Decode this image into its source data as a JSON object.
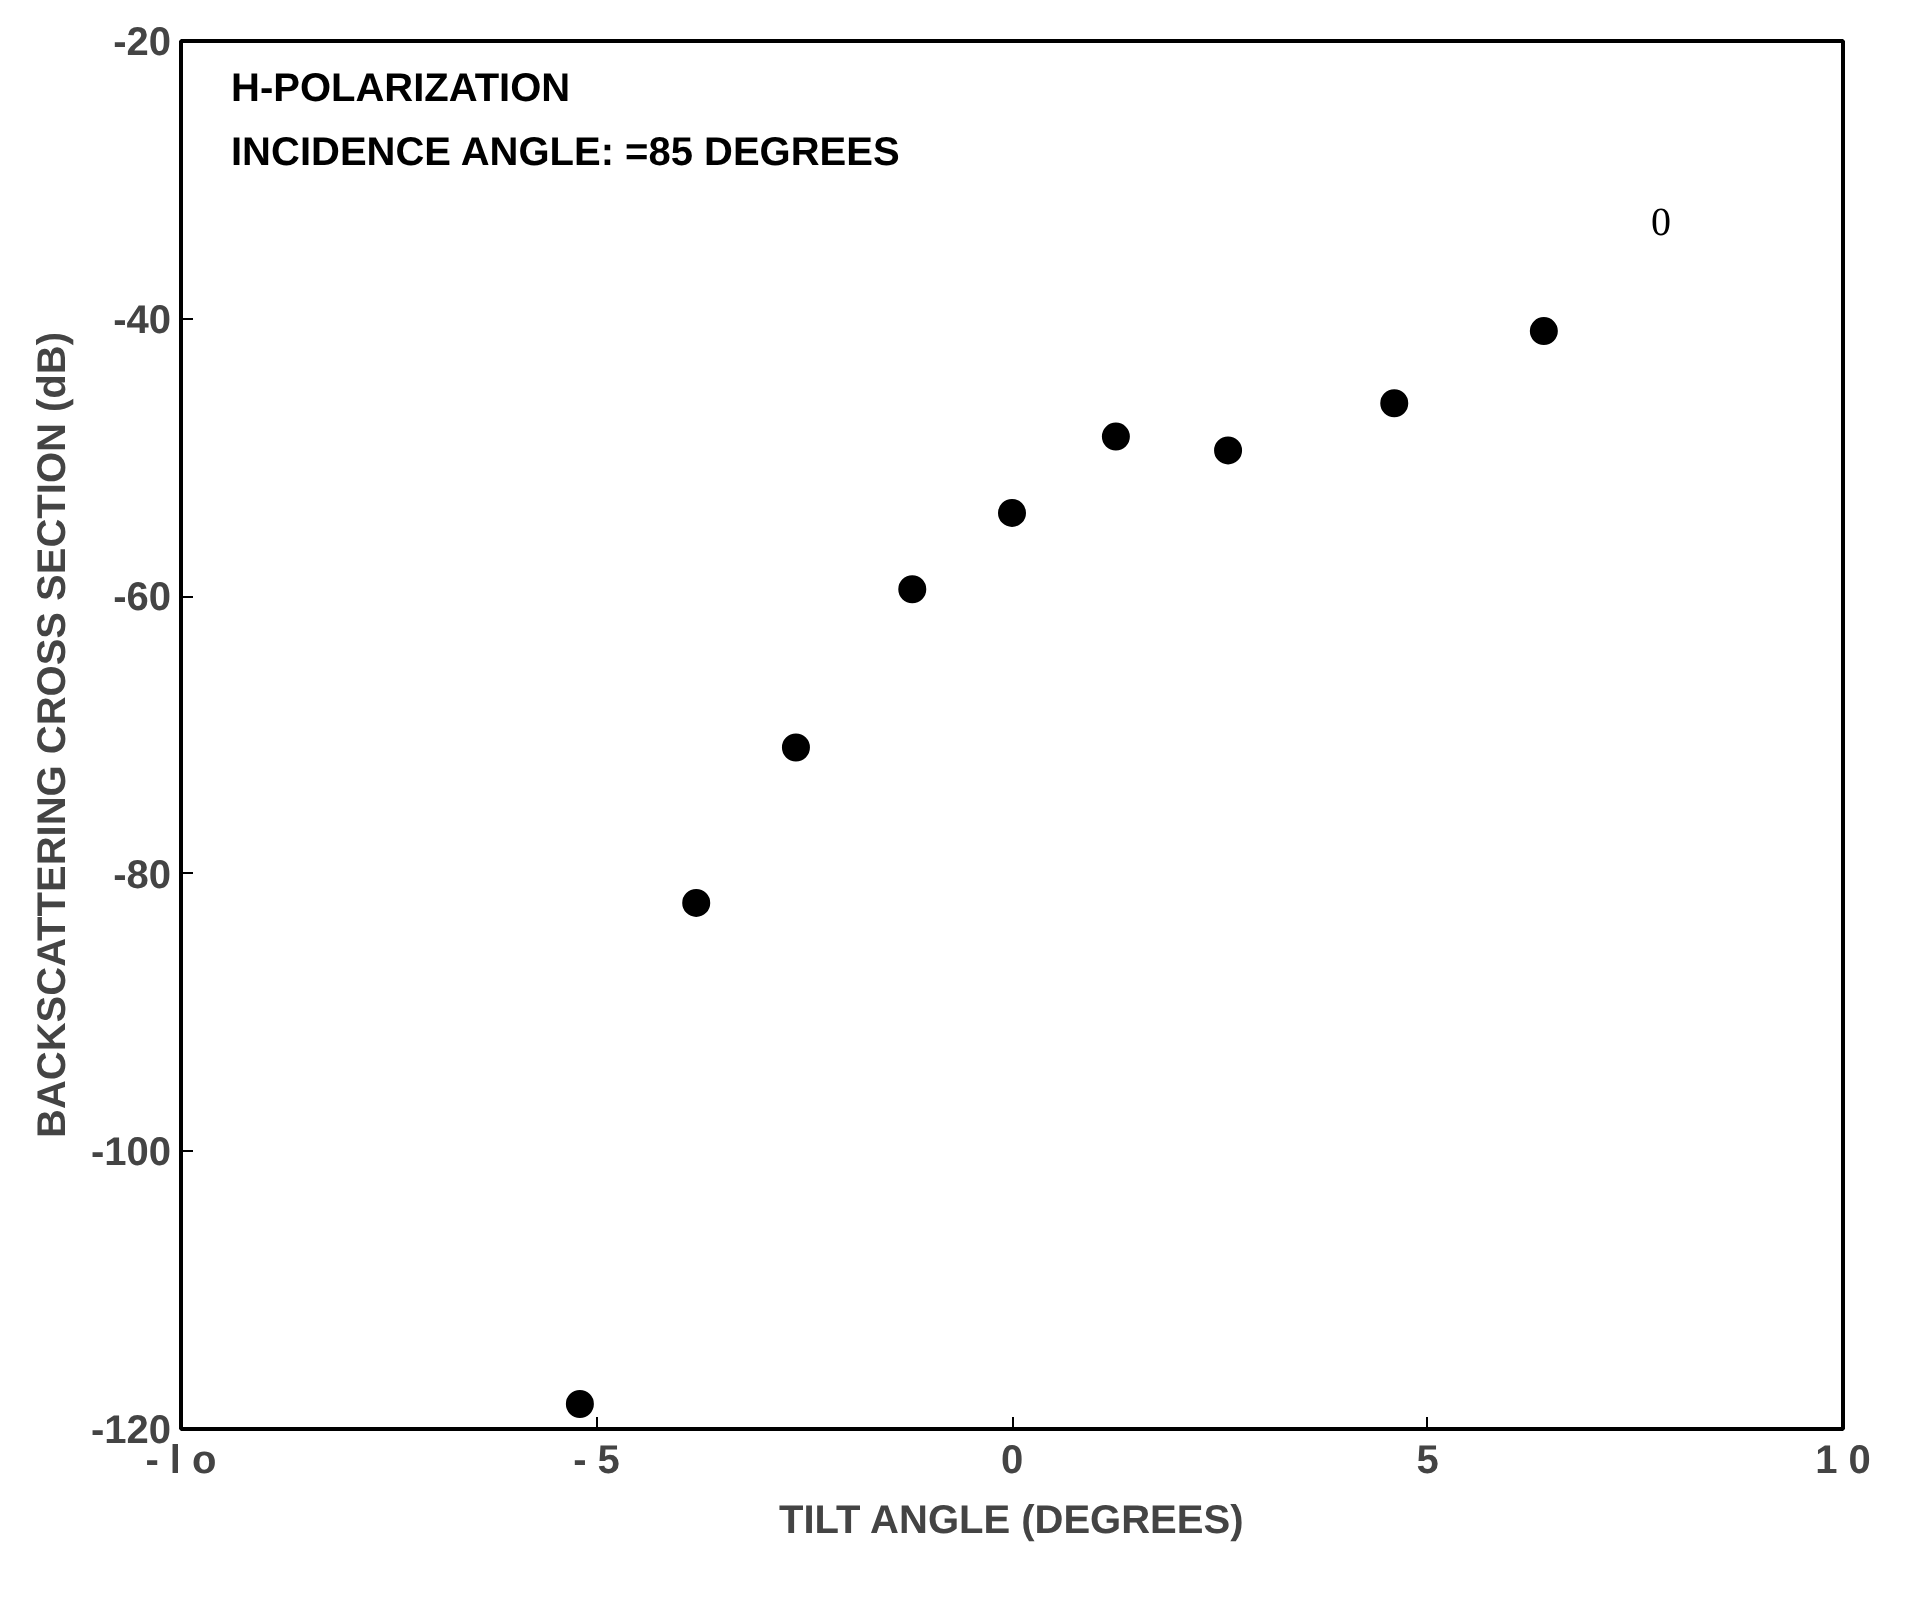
{
  "chart_data": {
    "type": "scatter",
    "title": "H-POLARIZATION",
    "subtitle": "INCIDENCE ANGLE: =85 DEGREES",
    "xlabel": "TILT ANGLE (DEGREES)",
    "ylabel": "BACKSCATTERING CROSS SECTION (dB)",
    "x": [
      -5.2,
      -3.8,
      -2.6,
      -1.2,
      0.0,
      1.25,
      2.6,
      4.6,
      6.4
    ],
    "values": [
      -118.2,
      -82.1,
      -70.9,
      -59.5,
      -54.0,
      -48.5,
      -49.5,
      -46.1,
      -40.9
    ],
    "color": "#000000",
    "marker": "circle",
    "annotations": [
      "0"
    ],
    "xlim": [
      -10,
      10
    ],
    "ylim": [
      -120,
      -20
    ],
    "xticks": [
      {
        "value": -10,
        "label": "- l o"
      },
      {
        "value": -5,
        "label": "- 5"
      },
      0,
      5,
      {
        "value": 10,
        "label": "1 0"
      }
    ],
    "yticks": [
      -120,
      -100,
      -80,
      -60,
      -40,
      -20
    ],
    "grid": false
  }
}
